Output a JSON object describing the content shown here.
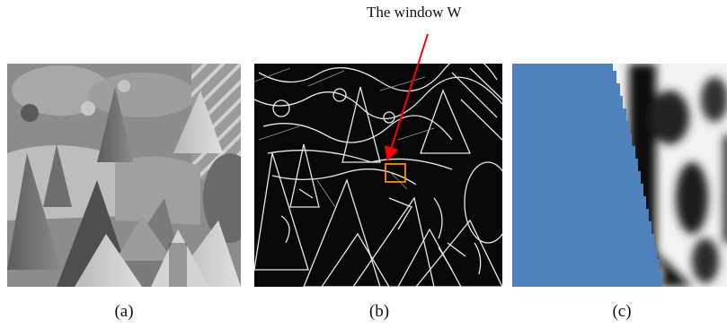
{
  "annotation": {
    "label": "The window W",
    "arrow_color": "#ff0000",
    "window_box_color": "#ff8c00"
  },
  "panels": [
    {
      "caption": "(a)",
      "content": "grayscale photograph of party hats"
    },
    {
      "caption": "(b)",
      "content": "edge map of the same scene"
    },
    {
      "caption": "(c)",
      "content": "zoomed view of window W"
    }
  ],
  "colors": {
    "masked_region": "#4f81bd"
  }
}
